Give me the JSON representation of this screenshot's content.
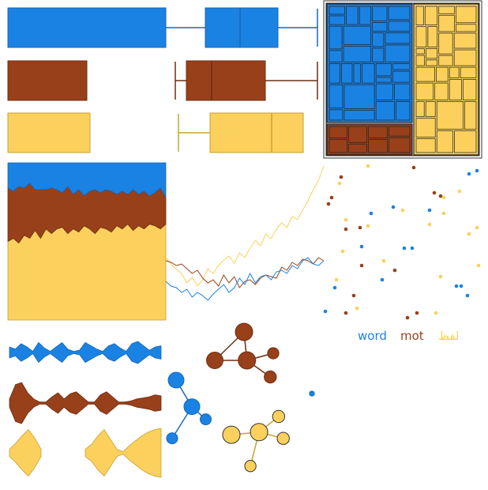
{
  "colors": {
    "blue": "#1a82e2",
    "brown": "#98401a",
    "yellow": "#fbd05c",
    "blue_edge": "#1668b8",
    "brown_edge": "#6e2e10",
    "yellow_edge": "#c9a232"
  },
  "chart_data": [
    {
      "type": "boxplot",
      "orientation": "horizontal",
      "series": [
        {
          "name": "",
          "color": "blue",
          "box": [
            0,
            100
          ],
          "q1": 125,
          "median": 147,
          "q3": 171,
          "whisker_high": 196
        },
        {
          "name": "",
          "color": "brown",
          "box": [
            0,
            50
          ],
          "whisker_low": 106,
          "q1": 113,
          "median": 129,
          "q3": 163,
          "whisker_high": 196
        },
        {
          "name": "",
          "color": "yellow",
          "box": [
            0,
            52
          ],
          "whisker_low": 108,
          "q1": 128,
          "median": 167,
          "q3": 187
        }
      ],
      "xlim": [
        0,
        196
      ]
    },
    {
      "type": "area",
      "stacked": "normalized",
      "series": [
        {
          "name": "",
          "color": "yellow",
          "values": [
            0.5,
            0.52,
            0.49,
            0.54,
            0.52,
            0.57,
            0.52,
            0.58,
            0.55,
            0.58,
            0.59,
            0.55,
            0.58,
            0.56,
            0.6,
            0.58,
            0.55,
            0.59,
            0.58,
            0.56,
            0.6,
            0.58,
            0.61,
            0.57,
            0.6,
            0.58,
            0.61,
            0.6,
            0.58,
            0.61
          ]
        },
        {
          "name": "",
          "color": "brown",
          "values": [
            0.34,
            0.3,
            0.36,
            0.3,
            0.35,
            0.26,
            0.31,
            0.25,
            0.29,
            0.25,
            0.22,
            0.3,
            0.22,
            0.27,
            0.19,
            0.24,
            0.28,
            0.22,
            0.25,
            0.26,
            0.2,
            0.24,
            0.19,
            0.26,
            0.2,
            0.24,
            0.18,
            0.21,
            0.26,
            0.17
          ]
        },
        {
          "name": "",
          "color": "blue",
          "values": [
            0.16,
            0.18,
            0.15,
            0.16,
            0.13,
            0.17,
            0.17,
            0.17,
            0.16,
            0.17,
            0.19,
            0.15,
            0.2,
            0.17,
            0.21,
            0.18,
            0.17,
            0.19,
            0.17,
            0.18,
            0.2,
            0.18,
            0.2,
            0.17,
            0.2,
            0.18,
            0.21,
            0.19,
            0.16,
            0.22
          ]
        }
      ]
    },
    {
      "type": "line",
      "series": [
        {
          "name": "",
          "color": "yellow",
          "values": [
            80,
            72,
            65,
            60,
            48,
            55,
            44,
            52,
            66,
            60,
            70,
            77,
            82,
            73,
            86,
            80,
            92,
            102,
            95,
            110,
            104,
            116,
            124,
            118,
            132,
            128,
            140,
            152,
            166,
            178,
            196
          ]
        },
        {
          "name": "",
          "color": "brown",
          "values": [
            76,
            74,
            70,
            72,
            66,
            60,
            64,
            54,
            48,
            52,
            44,
            58,
            48,
            56,
            42,
            50,
            52,
            46,
            54,
            58,
            56,
            54,
            68,
            64,
            74,
            70,
            78,
            76,
            72,
            80,
            76
          ]
        },
        {
          "name": "",
          "color": "blue",
          "values": [
            50,
            44,
            42,
            36,
            40,
            30,
            36,
            32,
            26,
            34,
            40,
            46,
            36,
            42,
            54,
            46,
            60,
            48,
            56,
            58,
            52,
            62,
            64,
            60,
            70,
            66,
            76,
            80,
            72,
            70,
            76
          ]
        }
      ],
      "ylim": [
        0,
        200
      ]
    },
    {
      "type": "treemap",
      "groups": [
        {
          "color": "blue",
          "value": 0.45
        },
        {
          "color": "yellow",
          "value": 0.38
        },
        {
          "color": "brown",
          "value": 0.17
        }
      ]
    },
    {
      "type": "scatter",
      "series": [
        {
          "name": "word",
          "color": "blue",
          "x": [
            0.92,
            0.97,
            0.3,
            0.44,
            0.67,
            0.56,
            0.84,
            0.91,
            0.51,
            0.07,
            0.01,
            0.87,
            0.24,
            0.37
          ],
          "y": [
            0.93,
            0.95,
            0.68,
            0.72,
            0.7,
            0.46,
            0.22,
            0.16,
            0.46,
            0.21,
            0.06,
            0.22,
            0.47,
            0.26
          ]
        },
        {
          "name": "mot",
          "color": "brown",
          "x": [
            0.57,
            0.11,
            0.05,
            0.23,
            0.74,
            0.7,
            0.14,
            0.24,
            0.03,
            0.45,
            0.14,
            0.59,
            0.19,
            0.53
          ],
          "y": [
            0.97,
            0.91,
            0.78,
            0.59,
            0.79,
            0.81,
            0.58,
            0.35,
            0.74,
            0.32,
            0.05,
            0.05,
            0.16,
            0.02
          ]
        },
        {
          "name": "لفظ",
          "color": "yellow",
          "x": [
            0.28,
            0.1,
            0.14,
            0.28,
            0.67,
            0.76,
            0.5,
            0.76,
            0.86,
            0.92,
            0.97,
            0.98,
            0.08,
            0.21,
            0.74,
            0.71,
            0.12,
            0.38
          ],
          "y": [
            0.98,
            0.87,
            0.64,
            0.6,
            0.61,
            0.68,
            0.7,
            0.78,
            0.82,
            0.55,
            0.59,
            0.35,
            0.26,
            0.08,
            0.28,
            0.05,
            0.44,
            0.38
          ]
        }
      ],
      "legend": {
        "placement": "bottom-right",
        "entries": [
          "word",
          "mot",
          "لفظ"
        ]
      }
    },
    {
      "type": "violin",
      "series": [
        {
          "name": "",
          "color": "blue",
          "widths": [
            0.5,
            0.3,
            0.8,
            0.5,
            0.1,
            0.9,
            0.4,
            0.1,
            0.5,
            0.9,
            0.3,
            0.1,
            0.2,
            0.9,
            0.6,
            0.3,
            0.1,
            0.6,
            0.8,
            0.4,
            0.1,
            0.8,
            1.0,
            0.6,
            0.2,
            0.5,
            0.6
          ]
        },
        {
          "name": "",
          "color": "brown",
          "widths": [
            0.2,
            0.9,
            1.0,
            0.5,
            0.2,
            0.05,
            0.05,
            0.3,
            0.5,
            0.2,
            0.45,
            0.55,
            0.3,
            0.05,
            0.05,
            0.4,
            0.55,
            0.3,
            0.05,
            0.05,
            0.1,
            0.2,
            0.25,
            0.3,
            0.4,
            0.35
          ]
        },
        {
          "name": "",
          "color": "yellow",
          "widths": [
            0.15,
            0.4,
            0.7,
            0.95,
            0.6,
            0.15,
            0.0,
            0.0,
            0.0,
            0.0,
            0.0,
            0.0,
            0.15,
            0.35,
            0.7,
            0.95,
            0.55,
            0.15,
            0.05,
            0.3,
            0.5,
            0.7,
            0.85,
            0.95,
            1.0
          ]
        }
      ]
    },
    {
      "type": "network",
      "graphs": [
        {
          "color": "brown",
          "nodes": [
            [
              0.5,
              0.0
            ],
            [
              0.0,
              0.6
            ],
            [
              0.55,
              0.6
            ],
            [
              1.0,
              0.45
            ],
            [
              0.95,
              0.95
            ]
          ],
          "radii": [
            1.0,
            0.95,
            1.0,
            0.65,
            0.7
          ],
          "edges": [
            [
              0,
              1
            ],
            [
              0,
              2
            ],
            [
              1,
              2
            ],
            [
              2,
              3
            ],
            [
              2,
              4
            ]
          ]
        },
        {
          "color": "blue",
          "nodes": [
            [
              0.1,
              0.0
            ],
            [
              0.5,
              0.42
            ],
            [
              0.85,
              0.62
            ],
            [
              0.0,
              0.92
            ]
          ],
          "radii": [
            1.0,
            1.0,
            0.7,
            0.7
          ],
          "edges": [
            [
              0,
              1
            ],
            [
              1,
              2
            ],
            [
              1,
              3
            ]
          ]
        },
        {
          "color": "yellow",
          "nodes": [
            [
              0.82,
              0.0
            ],
            [
              0.48,
              0.3
            ],
            [
              0.0,
              0.35
            ],
            [
              0.9,
              0.42
            ],
            [
              0.33,
              0.95
            ]
          ],
          "radii": [
            0.7,
            1.0,
            1.0,
            0.7,
            0.65
          ],
          "edges": [
            [
              0,
              1
            ],
            [
              1,
              2
            ],
            [
              1,
              3
            ],
            [
              1,
              4
            ]
          ]
        },
        {
          "color": "blue",
          "nodes": [
            [
              0.5,
              0.5
            ]
          ],
          "radii": [
            0.35
          ],
          "edges": []
        }
      ]
    }
  ]
}
